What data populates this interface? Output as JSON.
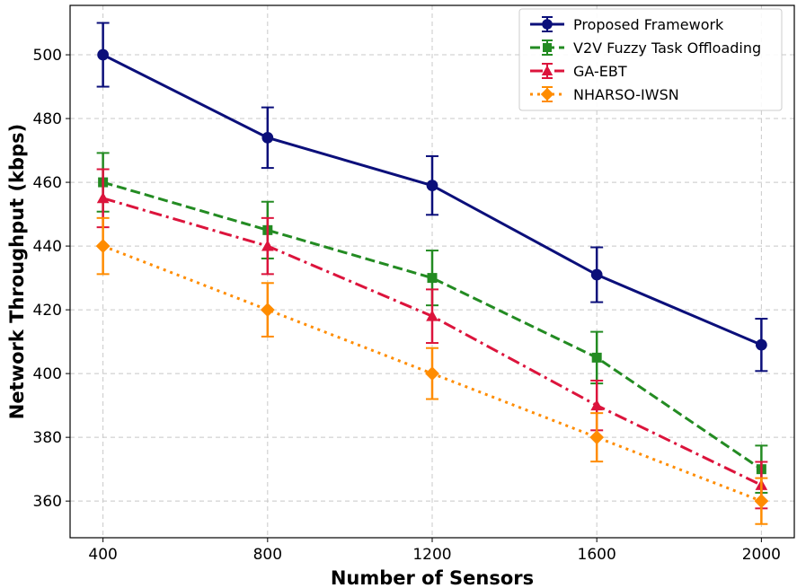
{
  "chart_data": {
    "type": "line",
    "title": "",
    "xlabel": "Number of Sensors",
    "ylabel": "Network Throughput (kbps)",
    "x": [
      400,
      800,
      1200,
      1600,
      2000
    ],
    "x_ticks": [
      "400",
      "800",
      "1200",
      "1600",
      "2000"
    ],
    "y_ticks": [
      "360",
      "380",
      "400",
      "420",
      "440",
      "460",
      "480",
      "500"
    ],
    "ylim": [
      348.5,
      515.5
    ],
    "grid": true,
    "legend_position": "top-right",
    "series": [
      {
        "name": "Proposed Framework",
        "color": "#0b0f7a",
        "dash": "solid",
        "marker": "circle",
        "values": [
          500,
          474,
          459,
          431,
          409
        ],
        "errors": [
          10,
          9.5,
          9.2,
          8.6,
          8.2
        ]
      },
      {
        "name": "V2V Fuzzy Task Offloading",
        "color": "#238b22",
        "dash": "dashed",
        "marker": "square",
        "values": [
          460,
          445,
          430,
          405,
          370
        ],
        "errors": [
          9.2,
          8.9,
          8.6,
          8.1,
          7.4
        ]
      },
      {
        "name": "GA-EBT",
        "color": "#dc143c",
        "dash": "dashdot",
        "marker": "triangle",
        "values": [
          455,
          440,
          418,
          390,
          365
        ],
        "errors": [
          9.1,
          8.8,
          8.4,
          7.8,
          7.3
        ]
      },
      {
        "name": "NHARSO-IWSN",
        "color": "#ff8c00",
        "dash": "dotted",
        "marker": "diamond",
        "values": [
          440,
          420,
          400,
          380,
          360
        ],
        "errors": [
          8.8,
          8.4,
          8.0,
          7.6,
          7.2
        ]
      }
    ]
  }
}
